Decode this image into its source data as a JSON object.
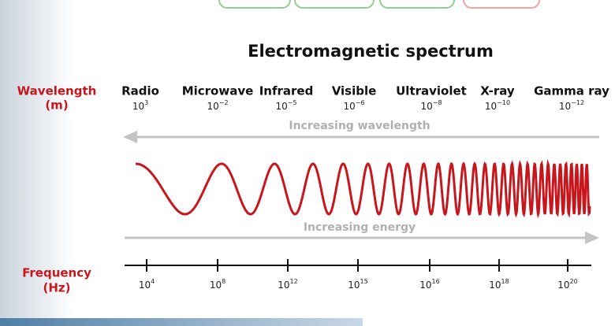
{
  "title": "Electromagnetic spectrum",
  "wavelength_label": [
    "Wavelength",
    "(m)"
  ],
  "frequency_label": [
    "Frequency",
    "(Hz)"
  ],
  "increasing_wavelength": "Increasing wavelength",
  "increasing_energy": "Increasing energy",
  "bands": [
    {
      "name": "Radio",
      "wavelength": {
        "base": "10",
        "exponent": "3"
      },
      "frequency": {
        "base": "10",
        "exponent": "4"
      }
    },
    {
      "name": "Microwave",
      "wavelength": {
        "base": "10",
        "exponent": "−2"
      },
      "frequency": {
        "base": "10",
        "exponent": "8"
      }
    },
    {
      "name": "Infrared",
      "wavelength": {
        "base": "10",
        "exponent": "−5"
      },
      "frequency": {
        "base": "10",
        "exponent": "12"
      }
    },
    {
      "name": "Visible",
      "wavelength": {
        "base": "10",
        "exponent": "−6"
      },
      "frequency": {
        "base": "10",
        "exponent": "15"
      }
    },
    {
      "name": "Ultraviolet",
      "wavelength": {
        "base": "10",
        "exponent": "−8"
      },
      "frequency": {
        "base": "10",
        "exponent": "16"
      }
    },
    {
      "name": "X-ray",
      "wavelength": {
        "base": "10",
        "exponent": "−10"
      },
      "frequency": {
        "base": "10",
        "exponent": "18"
      }
    },
    {
      "name": "Gamma ray",
      "wavelength": {
        "base": "10",
        "exponent": "−12"
      },
      "frequency": {
        "base": "10",
        "exponent": "20"
      }
    }
  ]
}
